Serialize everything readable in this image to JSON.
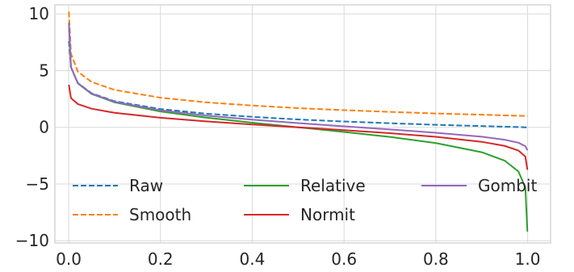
{
  "chart_data": {
    "type": "line",
    "title": "",
    "xlabel": "",
    "ylabel": "",
    "xlim": [
      -0.03,
      1.05
    ],
    "ylim": [
      -10.2,
      10.8
    ],
    "x_ticks": [
      0.0,
      0.2,
      0.4,
      0.6,
      0.8,
      1.0
    ],
    "x_tick_labels": [
      "0.0",
      "0.2",
      "0.4",
      "0.6",
      "0.8",
      "1.0"
    ],
    "y_ticks": [
      -10,
      -5,
      0,
      5,
      10
    ],
    "y_tick_labels": [
      "−10",
      "−5",
      "0",
      "5",
      "10"
    ],
    "grid": true,
    "legend": {
      "placement": "lower-center",
      "columns": 3
    },
    "x": [
      0.0005,
      0.005,
      0.02,
      0.05,
      0.1,
      0.2,
      0.3,
      0.4,
      0.5,
      0.6,
      0.7,
      0.8,
      0.9,
      0.95,
      0.98,
      0.995,
      0.9995
    ],
    "series": [
      {
        "name": "Raw",
        "color": "#1f77b4",
        "dash": true,
        "values": [
          7.6,
          5.3,
          3.91,
          3.0,
          2.3,
          1.61,
          1.2,
          0.92,
          0.69,
          0.51,
          0.36,
          0.22,
          0.11,
          0.05,
          0.02,
          0.0,
          0.0
        ]
      },
      {
        "name": "Smooth",
        "color": "#ff7f0e",
        "dash": true,
        "values": [
          10.2,
          6.5,
          4.9,
          4.0,
          3.3,
          2.61,
          2.2,
          1.92,
          1.69,
          1.51,
          1.36,
          1.22,
          1.11,
          1.05,
          1.02,
          1.0,
          1.0
        ]
      },
      {
        "name": "Relative",
        "color": "#2ca02c",
        "dash": false,
        "values": [
          9.2,
          5.3,
          3.87,
          2.94,
          2.2,
          1.39,
          0.85,
          0.41,
          0.0,
          -0.41,
          -0.85,
          -1.39,
          -2.2,
          -2.94,
          -3.9,
          -5.3,
          -9.2
        ]
      },
      {
        "name": "Normit",
        "color": "#d62728",
        "dash": false,
        "values": [
          3.75,
          2.58,
          2.05,
          1.64,
          1.28,
          0.84,
          0.52,
          0.25,
          0.0,
          -0.25,
          -0.52,
          -0.84,
          -1.28,
          -1.64,
          -2.05,
          -2.58,
          -3.75
        ]
      },
      {
        "name": "Gombit",
        "color": "#9467bd",
        "dash": false,
        "values": [
          9.2,
          5.3,
          3.9,
          2.97,
          2.25,
          1.5,
          1.03,
          0.67,
          0.37,
          0.09,
          -0.19,
          -0.48,
          -0.83,
          -1.1,
          -1.36,
          -1.67,
          -2.03
        ]
      }
    ]
  }
}
